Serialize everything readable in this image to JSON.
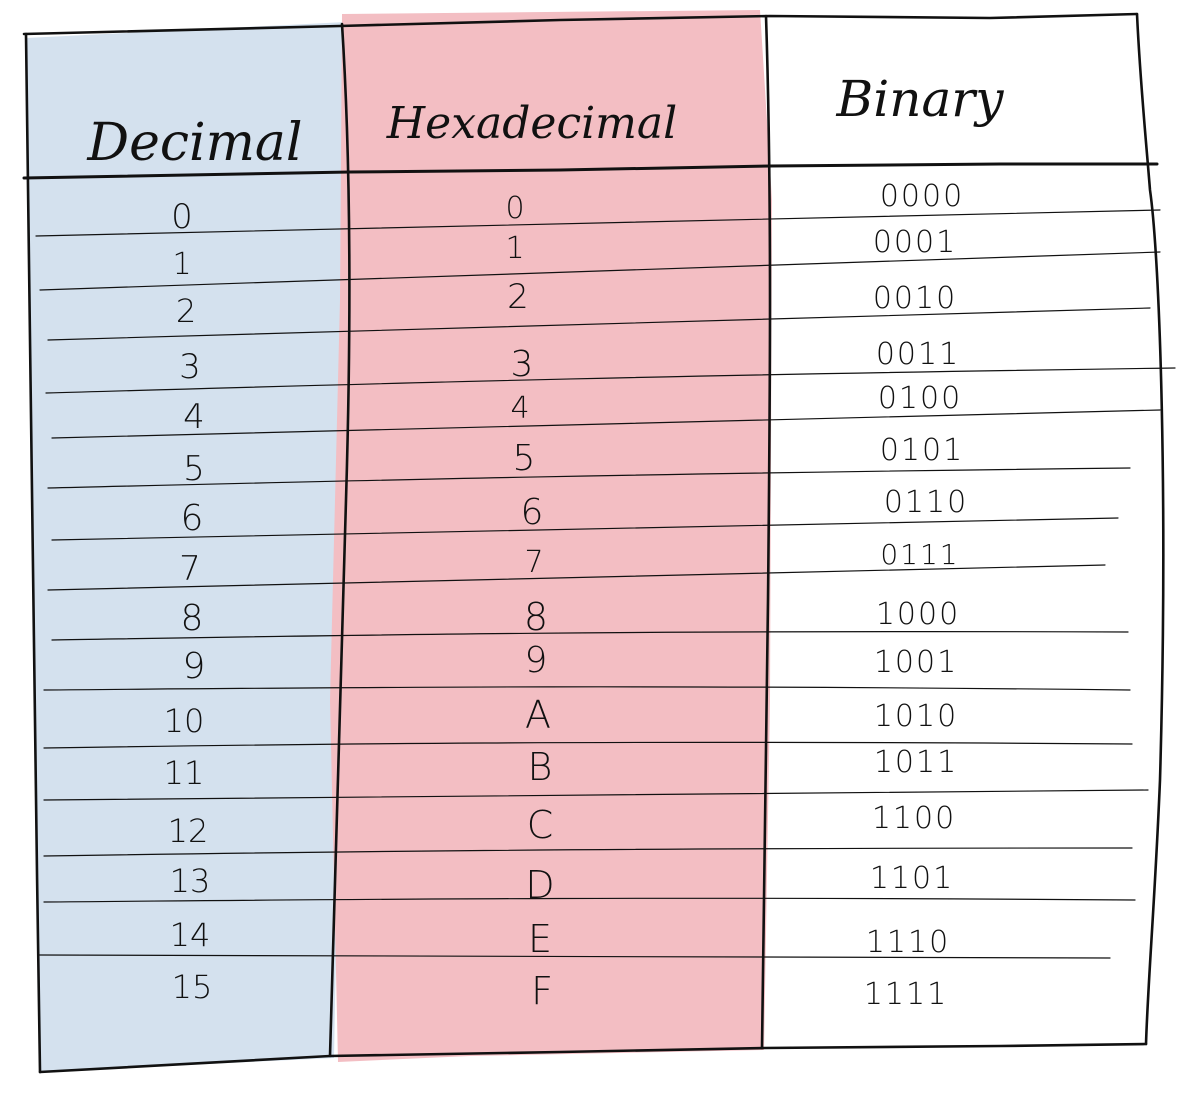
{
  "table": {
    "headers": [
      "Decimal",
      "Hexadecimal",
      "Binary"
    ],
    "rows": [
      [
        "0",
        "0",
        "0000"
      ],
      [
        "1",
        "1",
        "0001"
      ],
      [
        "2",
        "2",
        "0010"
      ],
      [
        "3",
        "3",
        "0011"
      ],
      [
        "4",
        "4",
        "0100"
      ],
      [
        "5",
        "5",
        "0101"
      ],
      [
        "6",
        "6",
        "0110"
      ],
      [
        "7",
        "7",
        "0111"
      ],
      [
        "8",
        "8",
        "1000"
      ],
      [
        "9",
        "9",
        "1001"
      ],
      [
        "10",
        "A",
        "1010"
      ],
      [
        "11",
        "B",
        "1011"
      ],
      [
        "12",
        "C",
        "1100"
      ],
      [
        "13",
        "D",
        "1101"
      ],
      [
        "14",
        "E",
        "1110"
      ],
      [
        "15",
        "F",
        "1111"
      ]
    ]
  },
  "colors": {
    "decimal_column_fill": "#d4e1ee",
    "hex_column_fill": "#f3bec3",
    "binary_column_fill": "#ffffff",
    "ink": "#111111"
  }
}
